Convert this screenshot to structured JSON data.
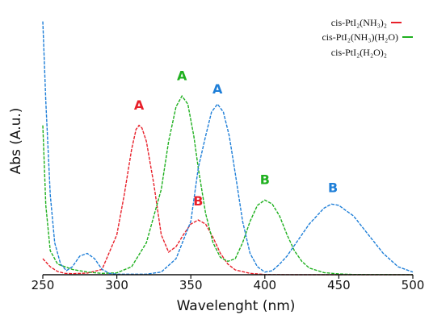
{
  "chart_data": {
    "type": "line",
    "title": "",
    "xlabel": "Wavelenght (nm)",
    "ylabel": "Abs (A.u.)",
    "xlim": [
      250,
      500
    ],
    "ylim": [
      0,
      1.0
    ],
    "x_ticks": [
      "250",
      "300",
      "350",
      "400",
      "450",
      "500"
    ],
    "grid": false,
    "legend": "top-right",
    "series": [
      {
        "name": "cis-PtI₂(NH₃)₂",
        "color": "#e8202a",
        "points": [
          [
            250,
            0.06
          ],
          [
            255,
            0.03
          ],
          [
            260,
            0.012
          ],
          [
            265,
            0.005
          ],
          [
            270,
            0.004
          ],
          [
            280,
            0.006
          ],
          [
            290,
            0.02
          ],
          [
            300,
            0.15
          ],
          [
            305,
            0.3
          ],
          [
            310,
            0.47
          ],
          [
            313,
            0.545
          ],
          [
            315,
            0.56
          ],
          [
            317,
            0.55
          ],
          [
            320,
            0.5
          ],
          [
            325,
            0.34
          ],
          [
            330,
            0.15
          ],
          [
            335,
            0.085
          ],
          [
            340,
            0.105
          ],
          [
            345,
            0.15
          ],
          [
            350,
            0.19
          ],
          [
            355,
            0.205
          ],
          [
            360,
            0.19
          ],
          [
            365,
            0.14
          ],
          [
            370,
            0.08
          ],
          [
            375,
            0.04
          ],
          [
            380,
            0.018
          ],
          [
            390,
            0.005
          ],
          [
            400,
            0.001
          ],
          [
            420,
            0.0
          ],
          [
            450,
            0.0
          ],
          [
            500,
            0.0
          ]
        ]
      },
      {
        "name": "cis-PtI₂(NH₃)(H₂O)",
        "color": "#1fb01f",
        "points": [
          [
            250,
            0.56
          ],
          [
            252,
            0.26
          ],
          [
            255,
            0.09
          ],
          [
            260,
            0.04
          ],
          [
            270,
            0.02
          ],
          [
            280,
            0.01
          ],
          [
            290,
            0.005
          ],
          [
            300,
            0.007
          ],
          [
            310,
            0.03
          ],
          [
            320,
            0.12
          ],
          [
            330,
            0.32
          ],
          [
            335,
            0.5
          ],
          [
            340,
            0.63
          ],
          [
            344,
            0.67
          ],
          [
            348,
            0.64
          ],
          [
            352,
            0.52
          ],
          [
            355,
            0.4
          ],
          [
            360,
            0.23
          ],
          [
            365,
            0.12
          ],
          [
            370,
            0.065
          ],
          [
            375,
            0.05
          ],
          [
            380,
            0.06
          ],
          [
            385,
            0.12
          ],
          [
            390,
            0.2
          ],
          [
            395,
            0.26
          ],
          [
            400,
            0.28
          ],
          [
            405,
            0.265
          ],
          [
            410,
            0.22
          ],
          [
            415,
            0.15
          ],
          [
            420,
            0.09
          ],
          [
            425,
            0.05
          ],
          [
            430,
            0.025
          ],
          [
            440,
            0.008
          ],
          [
            450,
            0.003
          ],
          [
            460,
            0.001
          ],
          [
            500,
            0.0
          ]
        ]
      },
      {
        "name": "cis-PtI₂(H₂O)₂",
        "color": "#1f7fd8",
        "points": [
          [
            250,
            0.95
          ],
          [
            252,
            0.65
          ],
          [
            255,
            0.3
          ],
          [
            258,
            0.12
          ],
          [
            262,
            0.04
          ],
          [
            266,
            0.015
          ],
          [
            270,
            0.03
          ],
          [
            275,
            0.07
          ],
          [
            280,
            0.08
          ],
          [
            285,
            0.06
          ],
          [
            290,
            0.02
          ],
          [
            295,
            0.005
          ],
          [
            300,
            0.002
          ],
          [
            320,
            0.002
          ],
          [
            330,
            0.01
          ],
          [
            340,
            0.06
          ],
          [
            350,
            0.2
          ],
          [
            355,
            0.4
          ],
          [
            360,
            0.52
          ],
          [
            364,
            0.61
          ],
          [
            368,
            0.64
          ],
          [
            372,
            0.61
          ],
          [
            376,
            0.52
          ],
          [
            380,
            0.38
          ],
          [
            385,
            0.2
          ],
          [
            390,
            0.08
          ],
          [
            395,
            0.03
          ],
          [
            400,
            0.01
          ],
          [
            405,
            0.015
          ],
          [
            410,
            0.04
          ],
          [
            415,
            0.07
          ],
          [
            420,
            0.11
          ],
          [
            430,
            0.19
          ],
          [
            440,
            0.25
          ],
          [
            445,
            0.265
          ],
          [
            450,
            0.26
          ],
          [
            460,
            0.22
          ],
          [
            470,
            0.15
          ],
          [
            480,
            0.08
          ],
          [
            490,
            0.03
          ],
          [
            500,
            0.01
          ]
        ]
      }
    ],
    "annotations": [
      {
        "text": "A",
        "x": 315,
        "y": 0.62,
        "color": "#e8202a"
      },
      {
        "text": "B",
        "x": 355,
        "y": 0.26,
        "color": "#e8202a"
      },
      {
        "text": "A",
        "x": 344,
        "y": 0.73,
        "color": "#1fb01f"
      },
      {
        "text": "B",
        "x": 400,
        "y": 0.34,
        "color": "#1fb01f"
      },
      {
        "text": "A",
        "x": 368,
        "y": 0.68,
        "color": "#1f7fd8"
      },
      {
        "text": "B",
        "x": 446,
        "y": 0.31,
        "color": "#1f7fd8"
      }
    ]
  }
}
